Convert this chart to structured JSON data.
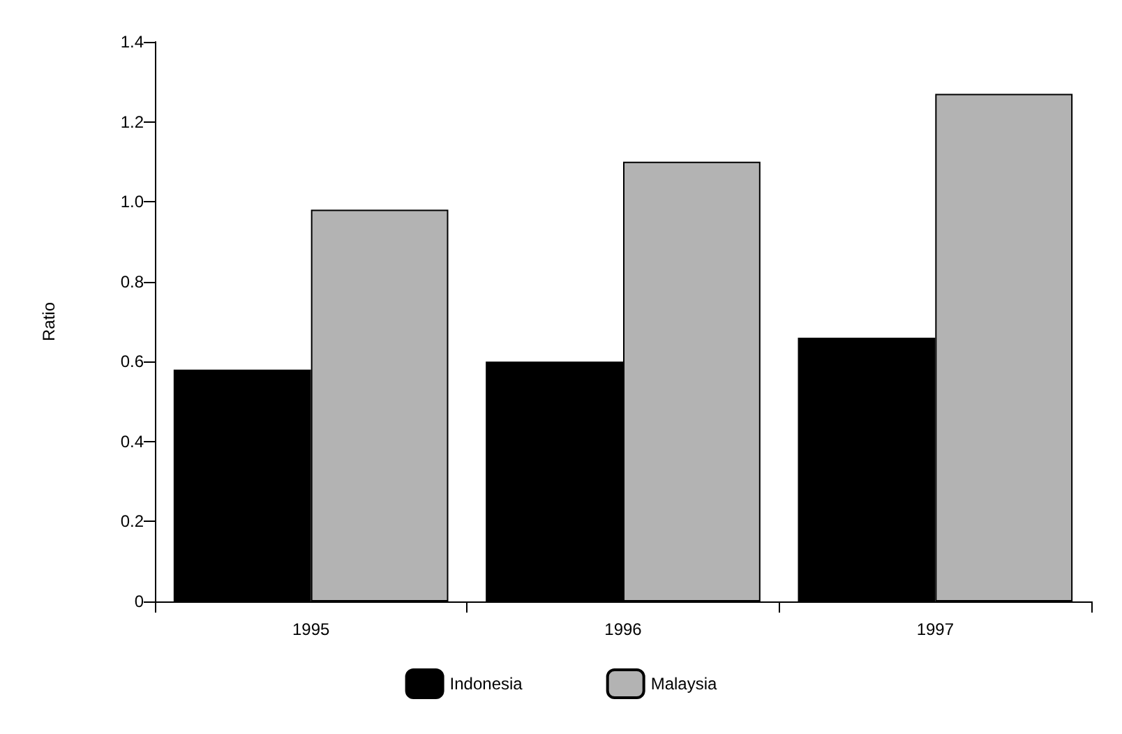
{
  "chart_data": {
    "type": "bar",
    "ylabel": "Ratio",
    "categories": [
      "1995",
      "1996",
      "1997"
    ],
    "series": [
      {
        "name": "Indonesia",
        "color": "#000000",
        "values": [
          0.58,
          0.6,
          0.66
        ]
      },
      {
        "name": "Malaysia",
        "color": "#b3b3b3",
        "values": [
          0.98,
          1.1,
          1.27
        ]
      }
    ],
    "ylim": [
      0,
      1.4
    ],
    "yticks": [
      0,
      0.2,
      0.4,
      0.6,
      0.8,
      {
        "value": 1.0,
        "label": "1.0"
      },
      1.2,
      1.4
    ],
    "grid": false,
    "legend": "bottom"
  }
}
